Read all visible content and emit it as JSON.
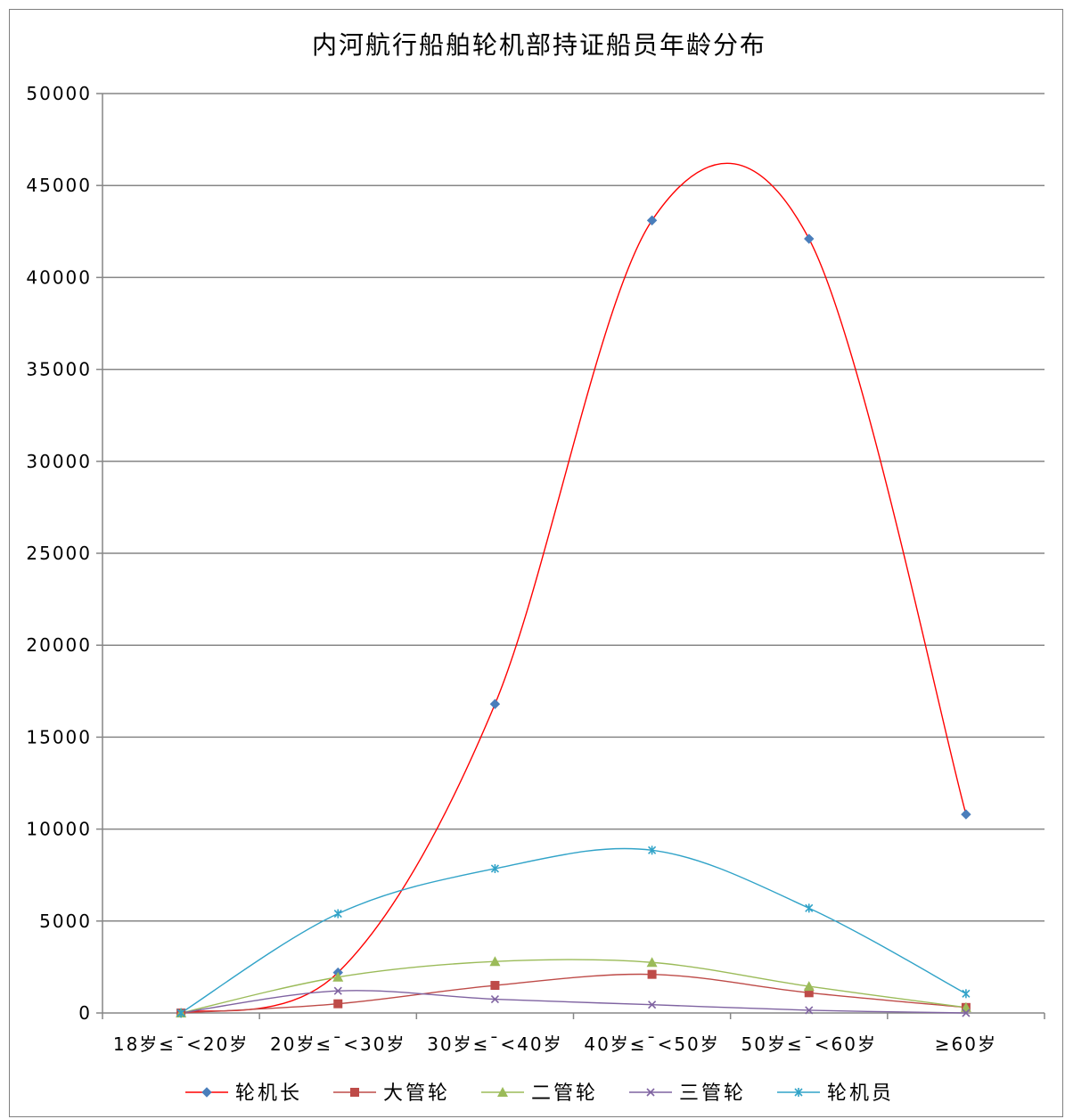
{
  "chart_data": {
    "type": "line",
    "smooth": true,
    "title": "内河航行船舶轮机部持证船员年龄分布",
    "xlabel": "",
    "ylabel": "",
    "categories": [
      "18岁≤¯<20岁",
      "20岁≤¯<30岁",
      "30岁≤¯<40岁",
      "40岁≤¯<50岁",
      "50岁≤¯<60岁",
      "≥60岁"
    ],
    "ylim": [
      0,
      50000
    ],
    "yticks": [
      "50000",
      "45000",
      "40000",
      "35000",
      "30000",
      "25000",
      "20000",
      "15000",
      "10000",
      "5000",
      "0"
    ],
    "grid": true,
    "legend_position": "bottom",
    "series": [
      {
        "name": "轮机长",
        "color": "#ff0000",
        "marker_color": "#4a7ebb",
        "marker": "diamond",
        "values": [
          0,
          2200,
          16800,
          43100,
          42100,
          10800
        ]
      },
      {
        "name": "大管轮",
        "color": "#be4b48",
        "marker_color": "#be4b48",
        "marker": "square",
        "values": [
          0,
          500,
          1500,
          2100,
          1100,
          300
        ]
      },
      {
        "name": "二管轮",
        "color": "#9bbb59",
        "marker_color": "#9bbb59",
        "marker": "triangle",
        "values": [
          0,
          1950,
          2800,
          2750,
          1450,
          300
        ]
      },
      {
        "name": "三管轮",
        "color": "#7f63a1",
        "marker_color": "#7f63a1",
        "marker": "x",
        "values": [
          0,
          1200,
          750,
          450,
          150,
          0
        ]
      },
      {
        "name": "轮机员",
        "color": "#31a3c8",
        "marker_color": "#31a3c8",
        "marker": "star",
        "values": [
          0,
          5400,
          7850,
          8850,
          5700,
          1050
        ]
      }
    ]
  }
}
